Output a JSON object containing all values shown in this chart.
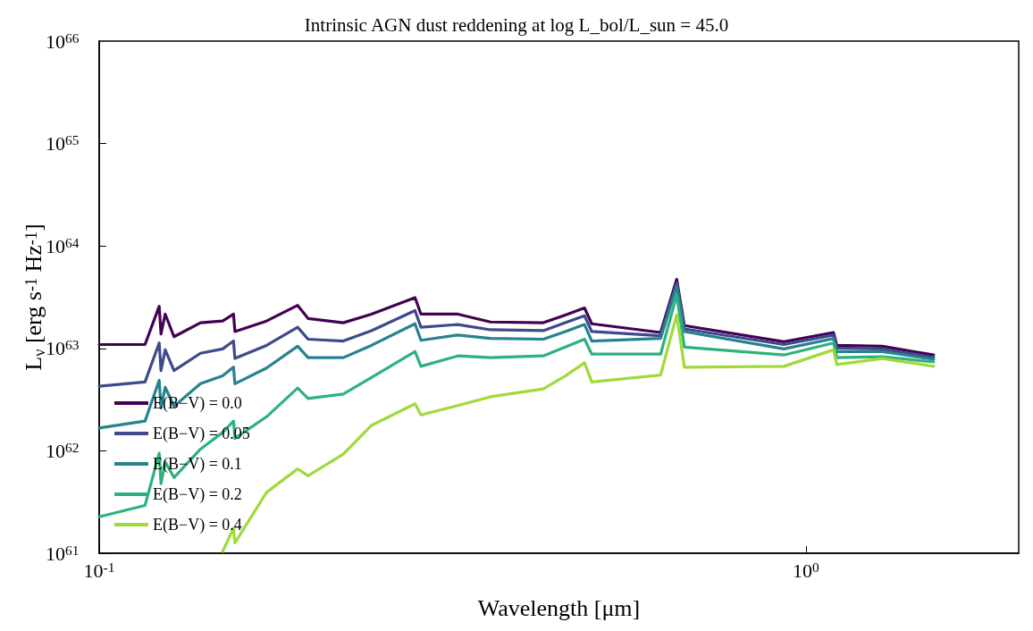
{
  "chart_data": {
    "type": "line",
    "title": "Intrinsic AGN dust reddening at log L_bol/L_sun = 45.0",
    "xlabel": "Wavelength [μm]",
    "ylabel": "L$_{ν}$ [erg s$^{-1}$ Hz$^{-1}$]",
    "x": [
      0.1,
      0.1161,
      0.1216,
      0.1223,
      0.124,
      0.1276,
      0.1391,
      0.1495,
      0.1549,
      0.1556,
      0.1725,
      0.1909,
      0.1975,
      0.2215,
      0.2428,
      0.2798,
      0.2853,
      0.3217,
      0.3578,
      0.425,
      0.4566,
      0.4861,
      0.4977,
      0.6228,
      0.6563,
      0.673,
      0.9307,
      1.0938,
      1.106,
      1.282,
      1.516
    ],
    "series": [
      {
        "name": "E(B−V) = 0.0",
        "color": "#440154",
        "values": [
          1.09e+63,
          1.09e+63,
          2.58e+63,
          1.38e+63,
          2.16e+63,
          1.3e+63,
          1.78e+63,
          1.85e+63,
          2.16e+63,
          1.46e+63,
          1.85e+63,
          2.63e+63,
          1.96e+63,
          1.78e+63,
          2.16e+63,
          3.13e+63,
          2.16e+63,
          2.16e+63,
          1.81e+63,
          1.78e+63,
          2.12e+63,
          2.48e+63,
          1.74e+63,
          1.43e+63,
          4.72e+63,
          1.67e+63,
          1.16e+63,
          1.43e+63,
          1.07e+63,
          1.05e+63,
          8.62e+62
        ]
      },
      {
        "name": "E(B−V) = 0.05",
        "color": "#3e4a89",
        "values": [
          4.27e+62,
          4.7e+62,
          1.13e+63,
          6.07e+62,
          9.69e+62,
          6.07e+62,
          8.96e+62,
          9.88e+62,
          1.18e+63,
          7.97e+62,
          1.07e+63,
          1.61e+63,
          1.23e+63,
          1.18e+63,
          1.49e+63,
          2.34e+63,
          1.61e+63,
          1.71e+63,
          1.52e+63,
          1.49e+63,
          1.78e+63,
          2.08e+63,
          1.46e+63,
          1.33e+63,
          4.37e+63,
          1.55e+63,
          1.09e+63,
          1.35e+63,
          1.01e+63,
          9.88e+62,
          8.13e+62
        ]
      },
      {
        "name": "E(B−V) = 0.1",
        "color": "#26828e",
        "values": [
          1.67e+62,
          1.95e+62,
          4.89e+62,
          2.62e+62,
          4.18e+62,
          2.72e+62,
          4.52e+62,
          5.39e+62,
          6.56e+62,
          4.52e+62,
          6.43e+62,
          1.05e+63,
          8.13e+62,
          8.13e+62,
          1.07e+63,
          1.74e+63,
          1.2e+63,
          1.35e+63,
          1.25e+63,
          1.23e+63,
          1.46e+63,
          1.71e+63,
          1.18e+63,
          1.25e+63,
          4.04e+63,
          1.46e+63,
          9.88e+62,
          1.25e+63,
          9.32e+62,
          9.32e+62,
          7.82e+62
        ]
      },
      {
        "name": "E(B−V) = 0.2",
        "color": "#2db27d",
        "values": [
          2.27e+61,
          2.93e+61,
          9.47e+61,
          4.78e+61,
          7.79e+61,
          5.48e+61,
          1.04e+62,
          1.51e+62,
          1.95e+62,
          1.32e+62,
          2.15e+62,
          4.1e+62,
          3.24e+62,
          3.58e+62,
          5.19e+62,
          9.32e+62,
          6.68e+62,
          8.45e+62,
          8.13e+62,
          8.45e+62,
          1.03e+63,
          1.23e+63,
          8.79e+62,
          8.79e+62,
          3.32e+63,
          1.03e+63,
          8.62e+62,
          1.13e+63,
          8.13e+62,
          8.29e+62,
          7.38e+62
        ]
      },
      {
        "name": "E(B−V) = 0.4",
        "color": "#9fda3a",
        "values": [
          null,
          null,
          null,
          null,
          null,
          null,
          null,
          1.04e+61,
          1.76e+61,
          1.26e+61,
          3.93e+61,
          6.66e+61,
          5.7e+61,
          9.29e+61,
          1.77e+62,
          2.88e+62,
          2.24e+62,
          2.77e+62,
          3.37e+62,
          4.02e+62,
          5.39e+62,
          7.23e+62,
          4.7e+62,
          5.5e+62,
          2.12e+63,
          6.56e+62,
          6.68e+62,
          9.69e+62,
          6.95e+62,
          7.97e+62,
          6.68e+62
        ]
      }
    ],
    "log": "xy",
    "xlim": [
      0.1,
      2
    ],
    "xticks": [
      {
        "value": 0.1,
        "label": "10$^{-1}$"
      },
      {
        "value": 1,
        "label": "10$^{0}$"
      }
    ],
    "ylim": [
      1e+61,
      1e+66
    ],
    "yticks": [
      {
        "value": 1e+61,
        "label": "10$^{61}$"
      },
      {
        "value": 1e+62,
        "label": "10$^{62}$"
      },
      {
        "value": 1e+63,
        "label": "10$^{63}$"
      },
      {
        "value": 1e+64,
        "label": "10$^{64}$"
      },
      {
        "value": 1e+65,
        "label": "10$^{65}$"
      },
      {
        "value": 1e+66,
        "label": "10$^{66}$"
      }
    ],
    "grid": false,
    "legend": "bottom left"
  }
}
